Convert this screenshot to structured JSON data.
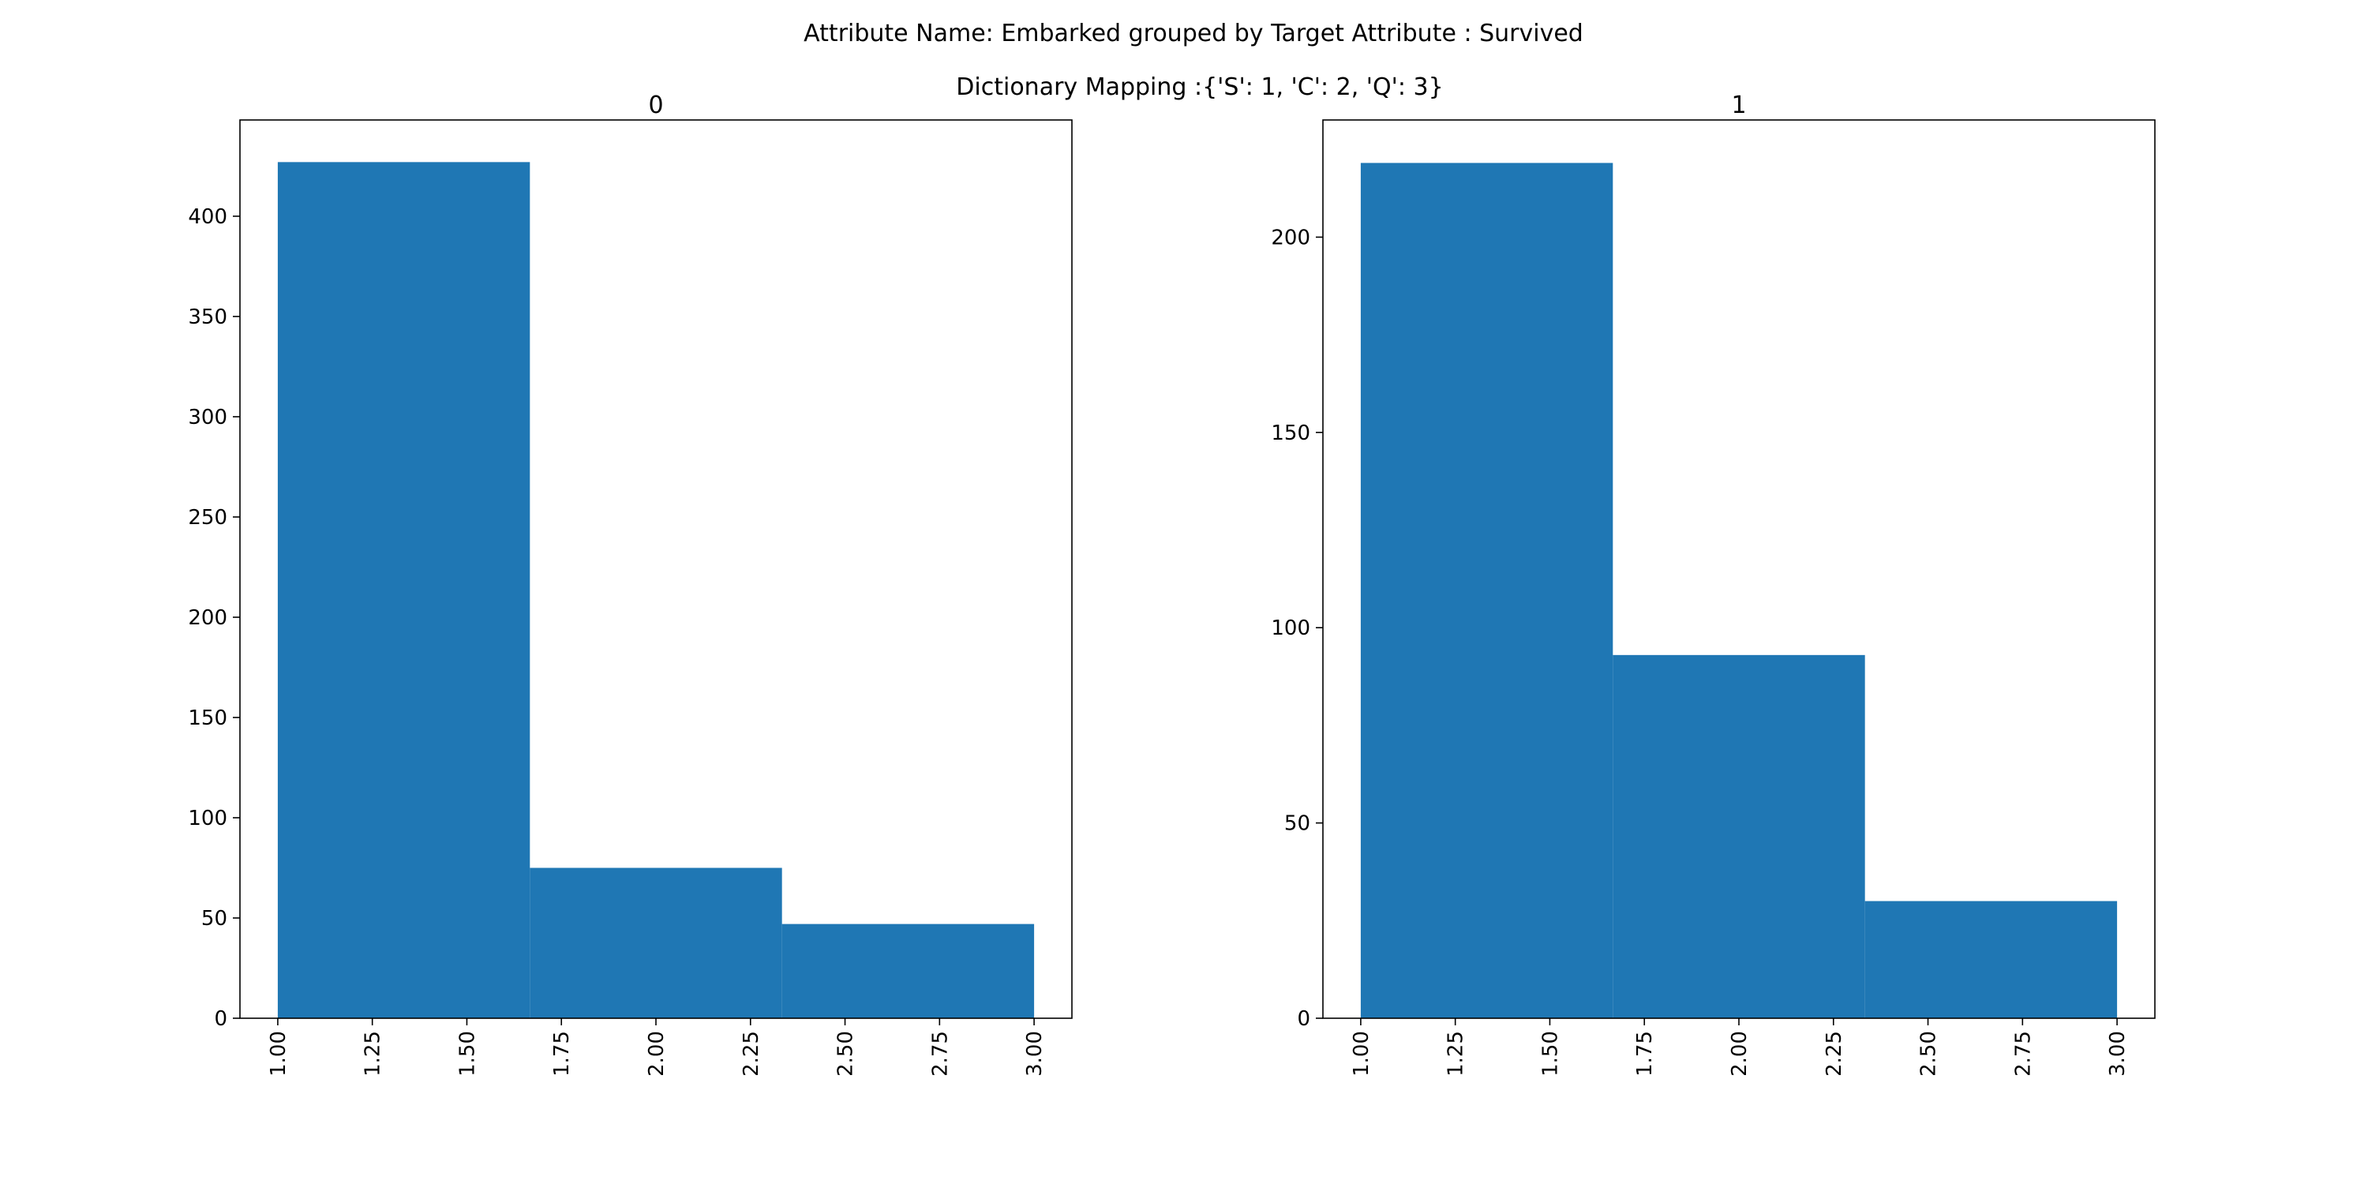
{
  "figure": {
    "title": "Attribute Name: Embarked grouped by Target Attribute : Survived",
    "subtitle": "Dictionary Mapping :{'S': 1, 'C': 2, 'Q': 3}"
  },
  "chart_data": [
    {
      "type": "bar",
      "title": "0",
      "xlabel": "",
      "ylabel": "",
      "bins": [
        {
          "x0": 1.0,
          "x1": 1.6667,
          "value": 427
        },
        {
          "x0": 1.6667,
          "x1": 2.3333,
          "value": 75
        },
        {
          "x0": 2.3333,
          "x1": 3.0,
          "value": 47
        }
      ],
      "xlim": [
        0.9,
        3.1
      ],
      "ylim": [
        0,
        448
      ],
      "xticks": [
        1.0,
        1.25,
        1.5,
        1.75,
        2.0,
        2.25,
        2.5,
        2.75,
        3.0
      ],
      "xtick_labels": [
        "1.00",
        "1.25",
        "1.50",
        "1.75",
        "2.00",
        "2.25",
        "2.50",
        "2.75",
        "3.00"
      ],
      "yticks": [
        0,
        50,
        100,
        150,
        200,
        250,
        300,
        350,
        400
      ],
      "ytick_labels": [
        "0",
        "50",
        "100",
        "150",
        "200",
        "250",
        "300",
        "350",
        "400"
      ],
      "grid": false,
      "color": "#1f77b4"
    },
    {
      "type": "bar",
      "title": "1",
      "xlabel": "",
      "ylabel": "",
      "bins": [
        {
          "x0": 1.0,
          "x1": 1.6667,
          "value": 219
        },
        {
          "x0": 1.6667,
          "x1": 2.3333,
          "value": 93
        },
        {
          "x0": 2.3333,
          "x1": 3.0,
          "value": 30
        }
      ],
      "xlim": [
        0.9,
        3.1
      ],
      "ylim": [
        0,
        230
      ],
      "xticks": [
        1.0,
        1.25,
        1.5,
        1.75,
        2.0,
        2.25,
        2.5,
        2.75,
        3.0
      ],
      "xtick_labels": [
        "1.00",
        "1.25",
        "1.50",
        "1.75",
        "2.00",
        "2.25",
        "2.50",
        "2.75",
        "3.00"
      ],
      "yticks": [
        0,
        50,
        100,
        150,
        200
      ],
      "ytick_labels": [
        "0",
        "50",
        "100",
        "150",
        "200"
      ],
      "grid": false,
      "color": "#1f77b4"
    }
  ]
}
